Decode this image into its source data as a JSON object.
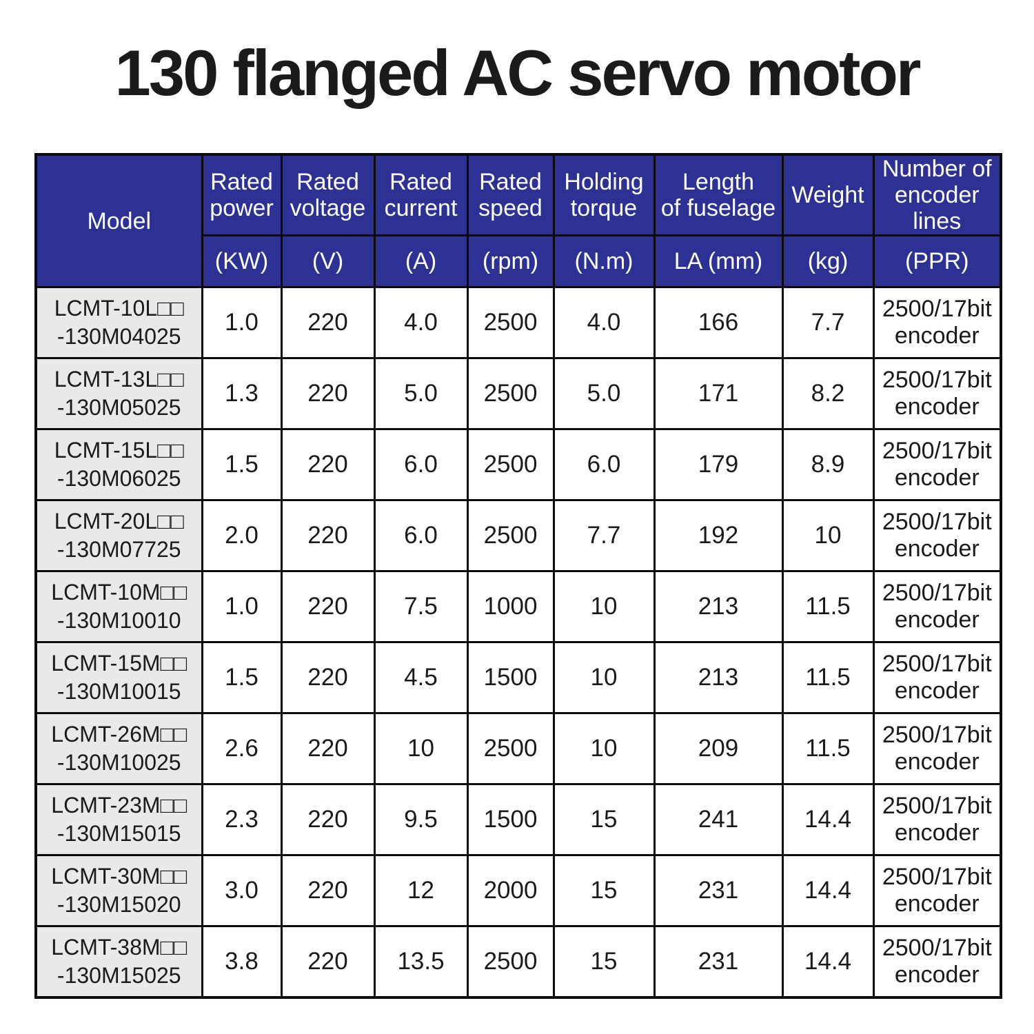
{
  "title": "130 flanged AC servo motor",
  "colors": {
    "header_bg": "#2d3193",
    "header_text": "#ffffff",
    "model_cell_bg": "#e9e9e9",
    "border": "#0a0a0a",
    "body_text": "#1a1a1a"
  },
  "table": {
    "columns": [
      {
        "label": "Model",
        "unit": ""
      },
      {
        "label": "Rated\npower",
        "unit": "(KW)"
      },
      {
        "label": "Rated\nvoltage",
        "unit": "(V)"
      },
      {
        "label": "Rated\ncurrent",
        "unit": "(A)"
      },
      {
        "label": "Rated\nspeed",
        "unit": "(rpm)"
      },
      {
        "label": "Holding\ntorque",
        "unit": "(N.m)"
      },
      {
        "label": "Length\nof fuselage",
        "unit": "LA (mm)"
      },
      {
        "label": "Weight",
        "unit": "(kg)"
      },
      {
        "label": "Number of\nencoder lines",
        "unit": "(PPR)"
      }
    ],
    "rows": [
      {
        "model": "LCMT-10L□□\n-130M04025",
        "values": [
          "1.0",
          "220",
          "4.0",
          "2500",
          "4.0",
          "166",
          "7.7"
        ],
        "encoder": "2500/17bit\nencoder"
      },
      {
        "model": "LCMT-13L□□\n-130M05025",
        "values": [
          "1.3",
          "220",
          "5.0",
          "2500",
          "5.0",
          "171",
          "8.2"
        ],
        "encoder": "2500/17bit\nencoder"
      },
      {
        "model": "LCMT-15L□□\n-130M06025",
        "values": [
          "1.5",
          "220",
          "6.0",
          "2500",
          "6.0",
          "179",
          "8.9"
        ],
        "encoder": "2500/17bit\nencoder"
      },
      {
        "model": "LCMT-20L□□\n-130M07725",
        "values": [
          "2.0",
          "220",
          "6.0",
          "2500",
          "7.7",
          "192",
          "10"
        ],
        "encoder": "2500/17bit\nencoder"
      },
      {
        "model": "LCMT-10M□□\n-130M10010",
        "values": [
          "1.0",
          "220",
          "7.5",
          "1000",
          "10",
          "213",
          "11.5"
        ],
        "encoder": "2500/17bit\nencoder"
      },
      {
        "model": "LCMT-15M□□\n-130M10015",
        "values": [
          "1.5",
          "220",
          "4.5",
          "1500",
          "10",
          "213",
          "11.5"
        ],
        "encoder": "2500/17bit\nencoder"
      },
      {
        "model": "LCMT-26M□□\n-130M10025",
        "values": [
          "2.6",
          "220",
          "10",
          "2500",
          "10",
          "209",
          "11.5"
        ],
        "encoder": "2500/17bit\nencoder"
      },
      {
        "model": "LCMT-23M□□\n-130M15015",
        "values": [
          "2.3",
          "220",
          "9.5",
          "1500",
          "15",
          "241",
          "14.4"
        ],
        "encoder": "2500/17bit\nencoder"
      },
      {
        "model": "LCMT-30M□□\n-130M15020",
        "values": [
          "3.0",
          "220",
          "12",
          "2000",
          "15",
          "231",
          "14.4"
        ],
        "encoder": "2500/17bit\nencoder"
      },
      {
        "model": "LCMT-38M□□\n-130M15025",
        "values": [
          "3.8",
          "220",
          "13.5",
          "2500",
          "15",
          "231",
          "14.4"
        ],
        "encoder": "2500/17bit\nencoder"
      }
    ]
  }
}
